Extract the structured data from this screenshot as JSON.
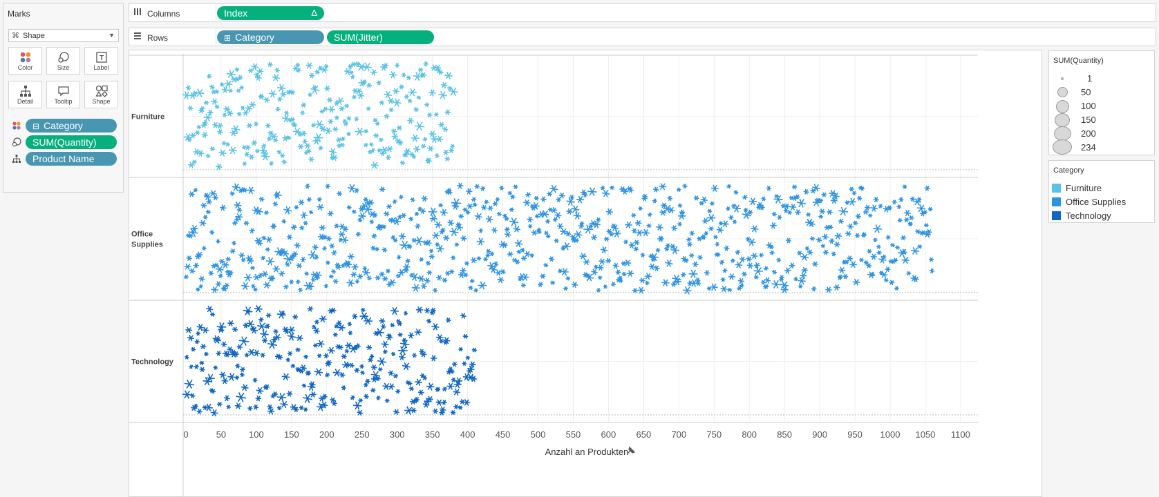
{
  "marks": {
    "title": "Marks",
    "mark_type": "Shape",
    "buttons": [
      {
        "label": "Color",
        "icon": "color-dots-icon"
      },
      {
        "label": "Size",
        "icon": "size-circles-icon"
      },
      {
        "label": "Label",
        "icon": "text-label-icon"
      },
      {
        "label": "Detail",
        "icon": "detail-hierarchy-icon"
      },
      {
        "label": "Tooltip",
        "icon": "tooltip-bubble-icon"
      },
      {
        "label": "Shape",
        "icon": "shapes-icon"
      }
    ],
    "pills": [
      {
        "label": "Category",
        "prefix": "⊟",
        "icon": "color-dots-icon"
      },
      {
        "label": "SUM(Quantity)",
        "icon": "size-circles-icon"
      },
      {
        "label": "Product Name",
        "icon": "detail-hierarchy-icon"
      }
    ]
  },
  "shelves": {
    "columns": {
      "label": "Columns",
      "pills": [
        {
          "label": "Index",
          "suffix": "Δ"
        }
      ]
    },
    "rows": {
      "label": "Rows",
      "pills": [
        {
          "label": "Category",
          "prefix": "⊞"
        },
        {
          "label": "SUM(Jitter)"
        }
      ]
    }
  },
  "size_legend": {
    "title": "SUM(Quantity)",
    "items": [
      "1",
      "50",
      "100",
      "150",
      "200",
      "234"
    ]
  },
  "color_legend": {
    "title": "Category",
    "items": [
      {
        "label": "Furniture",
        "color": "#5bc2e7"
      },
      {
        "label": "Office Supplies",
        "color": "#2e93e3"
      },
      {
        "label": "Technology",
        "color": "#0f66c4"
      }
    ]
  },
  "chart_data": {
    "type": "scatter",
    "xlabel": "Anzahl an Produkten",
    "xlim": [
      0,
      1100
    ],
    "x_ticks": [
      0,
      50,
      100,
      150,
      200,
      250,
      300,
      350,
      400,
      450,
      500,
      550,
      600,
      650,
      700,
      750,
      800,
      850,
      900,
      950,
      1000,
      1050,
      1100
    ],
    "rows": [
      {
        "label": "Furniture",
        "label_lines": [
          "Furniture"
        ],
        "count": 380,
        "color": "#5bc2e7"
      },
      {
        "label": "Office Supplies",
        "label_lines": [
          "Office",
          "Supplies"
        ],
        "count": 1060,
        "color": "#2e93e3"
      },
      {
        "label": "Technology",
        "label_lines": [
          "Technology"
        ],
        "count": 410,
        "color": "#0f66c4"
      }
    ]
  }
}
